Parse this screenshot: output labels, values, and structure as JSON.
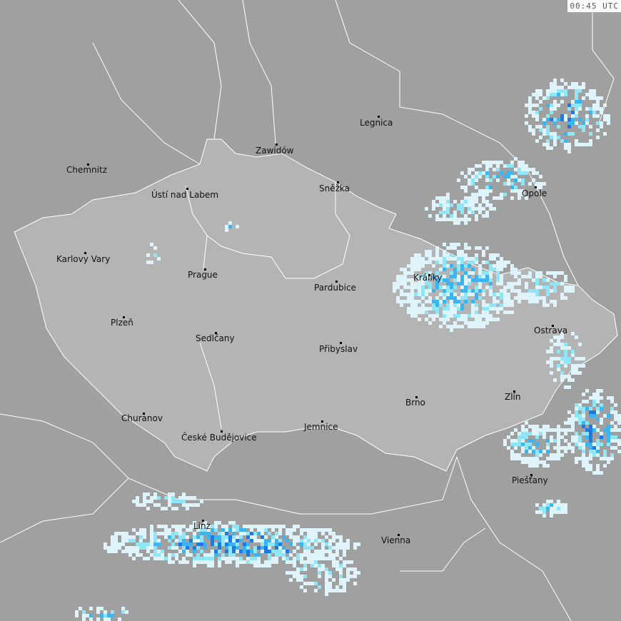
{
  "timestamp": "00:45 UTC",
  "colors": {
    "background": "#a0a0a0",
    "highlighted_region": "#b4b4b4",
    "border": "#ffffff",
    "precip_light": "#dff4fa",
    "precip_cyan": "#8ee6f6",
    "precip_mid": "#3cb4f0",
    "precip_heavy": "#1e78e6"
  },
  "cities": [
    "Chemnitz",
    "Zawidów",
    "Legnica",
    "Ústí nad Labem",
    "Sněžka",
    "Opole",
    "Karlovy Vary",
    "Prague",
    "Králíky",
    "Pardubice",
    "Plzeň",
    "Ostrava",
    "Sedlčany",
    "Přibyslav",
    "Zlín",
    "Brno",
    "Churanov",
    "Jemnice",
    "České Budějovice",
    "Piešťany",
    "Linz",
    "Vienna"
  ]
}
